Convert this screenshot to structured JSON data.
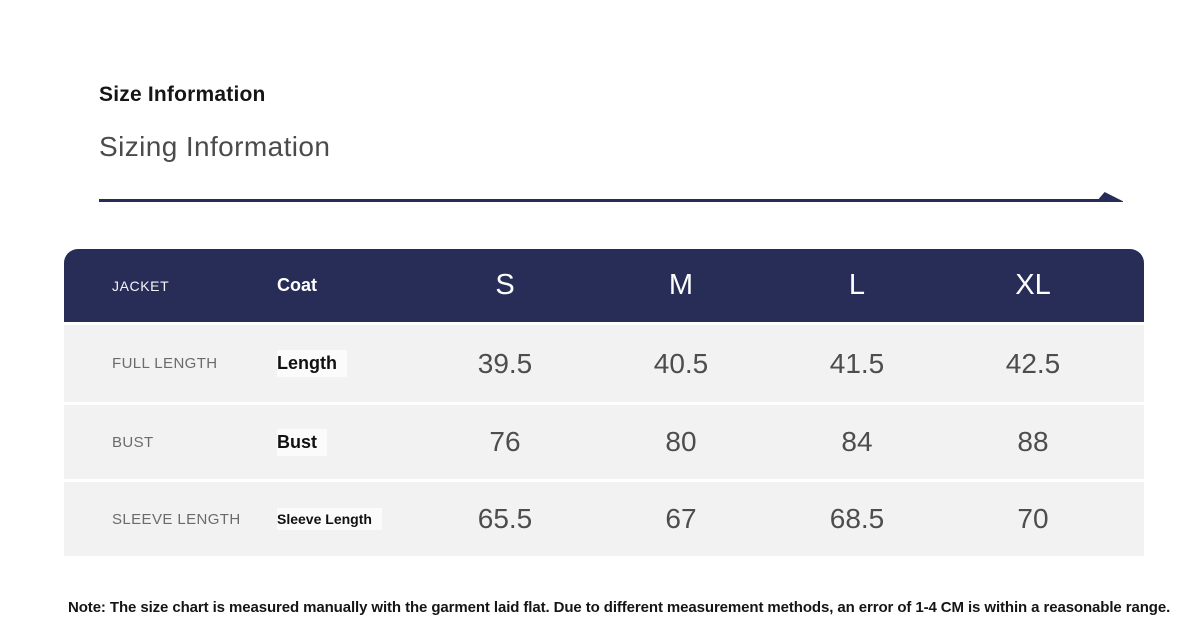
{
  "header": {
    "title": "Size Information",
    "subtitle": "Sizing Information"
  },
  "divider": {
    "color": "#282d57"
  },
  "table": {
    "head": {
      "caps_label": "JACKET",
      "label": "Coat",
      "sizes": [
        "S",
        "M",
        "L",
        "XL"
      ]
    },
    "rows": [
      {
        "caps_label": "FULL LENGTH",
        "label": "Length",
        "values": [
          "39.5",
          "40.5",
          "41.5",
          "42.5"
        ]
      },
      {
        "caps_label": "BUST",
        "label": "Bust",
        "values": [
          "76",
          "80",
          "84",
          "88"
        ]
      },
      {
        "caps_label": "SLEEVE LENGTH",
        "label": "Sleeve Length",
        "values": [
          "65.5",
          "67",
          "68.5",
          "70"
        ]
      }
    ],
    "colors": {
      "header_bg": "#282d57",
      "header_text": "#ffffff",
      "row_bg": "#f2f2f3",
      "caps_text": "#6b6b6b",
      "value_text": "#4d4d4d"
    }
  },
  "note": "Note: The size chart is measured manually with the garment laid flat. Due to different measurement methods, an error of 1-4 CM is within a reasonable range."
}
